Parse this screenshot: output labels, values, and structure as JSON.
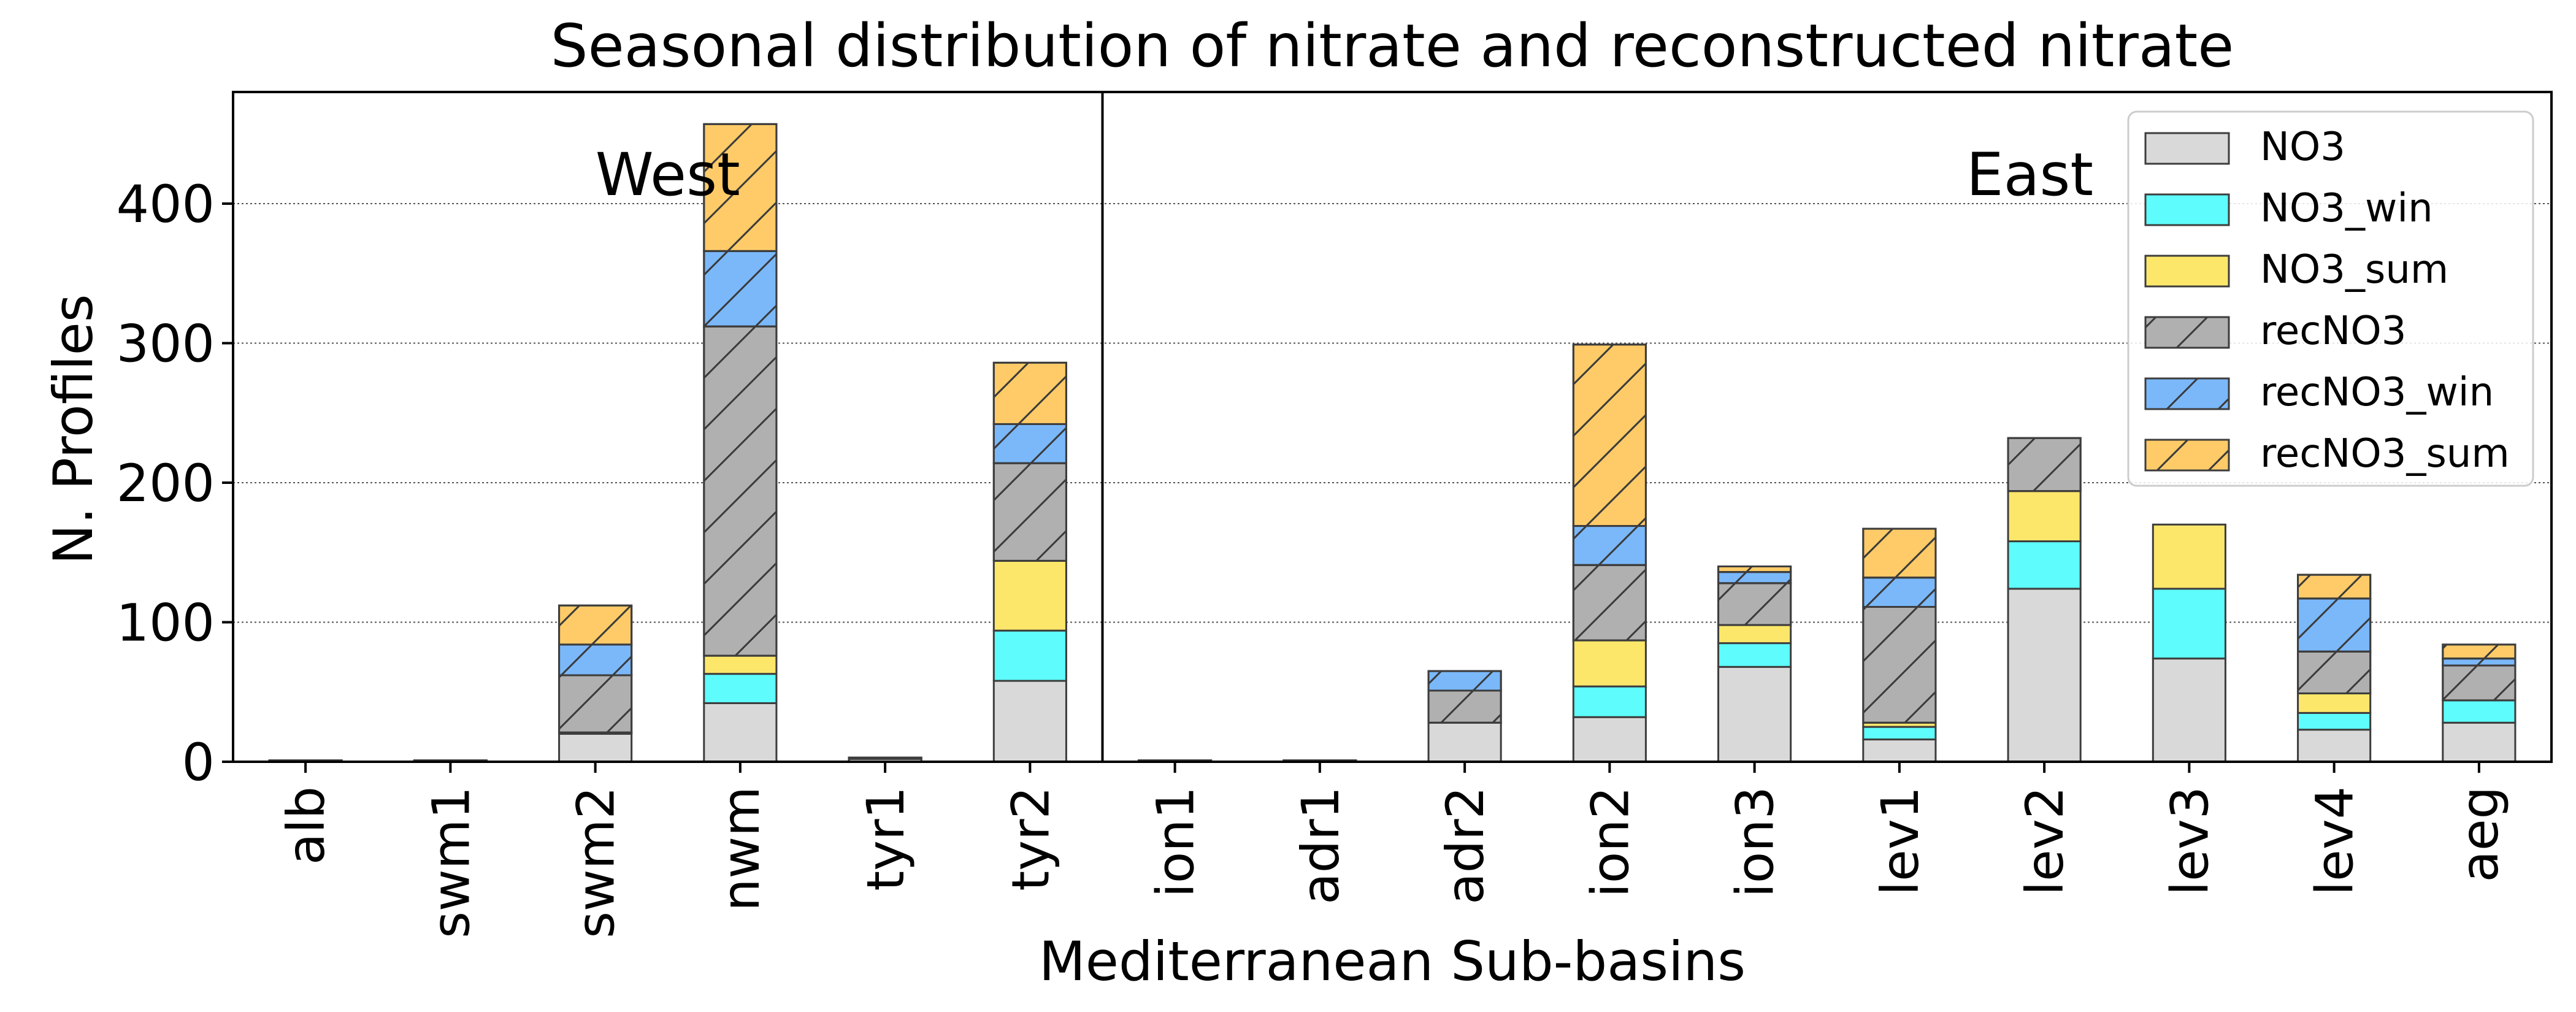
{
  "chart_data": {
    "type": "bar",
    "stacked": true,
    "title": "Seasonal distribution of nitrate and reconstructed nitrate",
    "xlabel": "Mediterranean Sub-basins",
    "ylabel": "N. Profiles",
    "ylim": [
      0,
      480
    ],
    "yticks": [
      0,
      100,
      200,
      300,
      400
    ],
    "grid": "horizontal dotted",
    "legend_position": "top-right",
    "regions": [
      {
        "label": "West",
        "categories": [
          "alb",
          "swm1",
          "swm2",
          "nwm",
          "tyr1",
          "tyr2"
        ]
      },
      {
        "label": "East",
        "categories": [
          "ion1",
          "adr1",
          "adr2",
          "ion2",
          "ion3",
          "lev1",
          "lev2",
          "lev3",
          "lev4",
          "aeg"
        ]
      }
    ],
    "categories": [
      "alb",
      "swm1",
      "swm2",
      "nwm",
      "tyr1",
      "tyr2",
      "ion1",
      "adr1",
      "adr2",
      "ion2",
      "ion3",
      "lev1",
      "lev2",
      "lev3",
      "lev4",
      "aeg"
    ],
    "series": [
      {
        "name": "NO3",
        "color": "#d9d9d9",
        "hatch": false,
        "values": [
          0,
          0,
          20,
          42,
          2,
          58,
          0,
          0,
          28,
          32,
          68,
          16,
          124,
          74,
          23,
          28
        ]
      },
      {
        "name": "NO3_win",
        "color": "#5efcfc",
        "hatch": false,
        "values": [
          0,
          0,
          0,
          21,
          0,
          36,
          0,
          0,
          0,
          22,
          17,
          9,
          34,
          50,
          12,
          16
        ]
      },
      {
        "name": "NO3_sum",
        "color": "#fde76a",
        "hatch": false,
        "values": [
          0,
          0,
          1,
          13,
          0,
          50,
          0,
          0,
          0,
          33,
          13,
          3,
          36,
          46,
          14,
          0
        ]
      },
      {
        "name": "recNO3",
        "color": "#b0b0b0",
        "hatch": true,
        "values": [
          1,
          1,
          41,
          236,
          1,
          70,
          1,
          1,
          23,
          54,
          30,
          83,
          38,
          0,
          30,
          25
        ]
      },
      {
        "name": "recNO3_win",
        "color": "#7ab8fa",
        "hatch": true,
        "values": [
          0,
          0,
          22,
          54,
          0,
          28,
          0,
          0,
          14,
          28,
          8,
          21,
          0,
          0,
          38,
          5
        ]
      },
      {
        "name": "recNO3_sum",
        "color": "#fecb68",
        "hatch": true,
        "values": [
          0,
          0,
          28,
          91,
          0,
          44,
          0,
          0,
          0,
          130,
          4,
          35,
          0,
          0,
          17,
          10
        ]
      }
    ]
  }
}
